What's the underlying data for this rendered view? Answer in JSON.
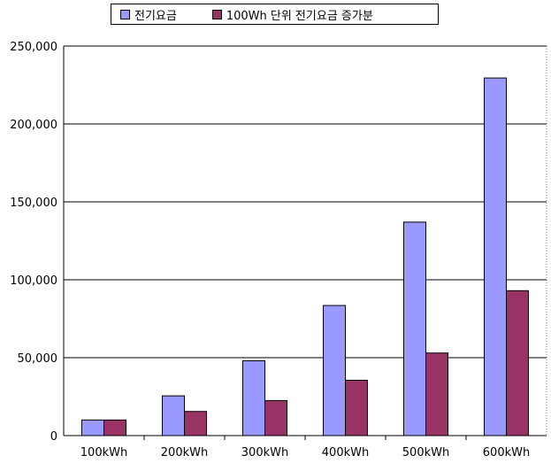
{
  "chart_data": {
    "type": "bar",
    "categories": [
      "100kWh",
      "200kWh",
      "300kWh",
      "400kWh",
      "500kWh",
      "600kWh"
    ],
    "series": [
      {
        "name": "전기요금",
        "values": [
          10000,
          25500,
          48000,
          83500,
          137000,
          229500
        ],
        "color": "#9999ff"
      },
      {
        "name": "100Wh 단위 전기요금 증가분",
        "values": [
          10000,
          15500,
          22500,
          35500,
          53000,
          93000
        ],
        "color": "#993366"
      }
    ],
    "ylim": [
      0,
      250000
    ],
    "yticks": [
      0,
      50000,
      100000,
      150000,
      200000,
      250000
    ],
    "ytick_labels": [
      "0",
      "50,000",
      "100,000",
      "150,000",
      "200,000",
      "250,000"
    ],
    "grid": true,
    "legend_position": "top"
  }
}
